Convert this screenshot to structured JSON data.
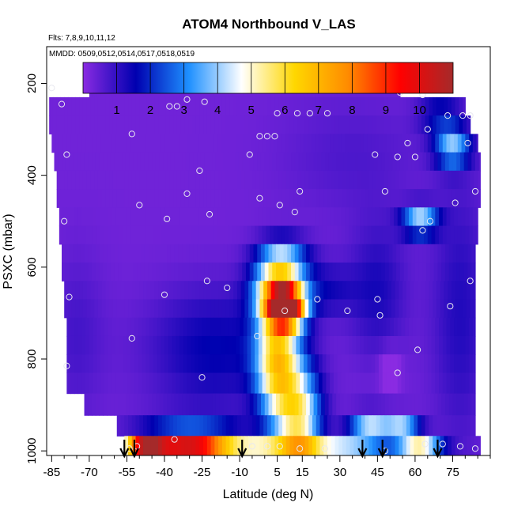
{
  "chart_data": {
    "type": "heatmap",
    "title": "ATOM4 Northbound V_LAS",
    "note_flights": "Flts: 7,8,9,10,11,12",
    "note_dates": "MMDD: 0509,0512,0514,0517,0518,0519",
    "xlabel": "Latitude (deg N)",
    "ylabel": "PSXC (mbar)",
    "xlim": [
      -87,
      90
    ],
    "ylim": [
      1010,
      120
    ],
    "y_reversed": true,
    "x_ticks": [
      -85,
      -70,
      -55,
      -40,
      -25,
      -10,
      5,
      15,
      30,
      45,
      60,
      75
    ],
    "x_minor_step": 5,
    "y_ticks": [
      200,
      400,
      600,
      800,
      1000
    ],
    "colorbar": {
      "range": [
        0,
        11
      ],
      "tick_values": [
        1,
        2,
        3,
        4,
        5,
        6,
        7,
        8,
        9,
        10
      ],
      "tick_labels": [
        "1",
        "2",
        "3",
        "4",
        "5",
        "6",
        "7",
        "8",
        "9",
        "10"
      ],
      "colors": [
        "#8a2be2",
        "#0000b0",
        "#1e90ff",
        "#ffffff",
        "#ffd700",
        "#ff8c00",
        "#ff0000",
        "#a52a2a"
      ]
    },
    "pressure_levels": [
      210,
      250,
      290,
      330,
      370,
      410,
      450,
      490,
      530,
      570,
      610,
      650,
      690,
      730,
      770,
      810,
      850,
      900,
      945,
      990
    ],
    "row_extent": [
      [
        -70,
        54
      ],
      [
        -86,
        80
      ],
      [
        -86,
        82
      ],
      [
        -85,
        85
      ],
      [
        -84,
        86
      ],
      [
        -83,
        86
      ],
      [
        -83,
        86
      ],
      [
        -82,
        85
      ],
      [
        -82,
        85
      ],
      [
        -81,
        84
      ],
      [
        -81,
        84
      ],
      [
        -80,
        84
      ],
      [
        -80,
        84
      ],
      [
        -79,
        84
      ],
      [
        -79,
        84
      ],
      [
        -79,
        84
      ],
      [
        -79,
        84
      ],
      [
        -72,
        84
      ],
      [
        -59,
        84
      ],
      [
        -56,
        86
      ]
    ],
    "field_background_value": 0.3,
    "field_features": [
      {
        "lat": 8.5,
        "p": 690,
        "amp": 9.6,
        "sx": 5,
        "sy": 28
      },
      {
        "lat": 6.0,
        "p": 650,
        "amp": 5.6,
        "sx": 7,
        "sy": 40
      },
      {
        "lat": 5.0,
        "p": 800,
        "amp": 5.8,
        "sx": 6,
        "sy": 95
      },
      {
        "lat": 14.0,
        "p": 930,
        "amp": 4.8,
        "sx": 6,
        "sy": 80
      },
      {
        "lat": 7.0,
        "p": 580,
        "amp": 3.0,
        "sx": 7,
        "sy": 30
      },
      {
        "lat": -40.0,
        "p": 990,
        "amp": 7.2,
        "sx": 12,
        "sy": 14
      },
      {
        "lat": -25.0,
        "p": 990,
        "amp": 4.5,
        "sx": 9,
        "sy": 14
      },
      {
        "lat": -48.0,
        "p": 990,
        "amp": 4.8,
        "sx": 5,
        "sy": 14
      },
      {
        "lat": -5.0,
        "p": 990,
        "amp": 3.8,
        "sx": 14,
        "sy": 14
      },
      {
        "lat": 30.0,
        "p": 990,
        "amp": 3.8,
        "sx": 14,
        "sy": 14
      },
      {
        "lat": 62.0,
        "p": 990,
        "amp": 4.5,
        "sx": 6,
        "sy": 14
      },
      {
        "lat": 55.0,
        "p": 950,
        "amp": 3.5,
        "sx": 5,
        "sy": 18
      },
      {
        "lat": 42.0,
        "p": 945,
        "amp": 3.8,
        "sx": 6,
        "sy": 20
      },
      {
        "lat": -30.0,
        "p": 940,
        "amp": 2.0,
        "sx": 14,
        "sy": 18
      },
      {
        "lat": -20.0,
        "p": 780,
        "amp": 1.3,
        "sx": 18,
        "sy": 90
      },
      {
        "lat": 62.0,
        "p": 500,
        "amp": 4.0,
        "sx": 5,
        "sy": 22
      },
      {
        "lat": 75.0,
        "p": 340,
        "amp": 3.5,
        "sx": 5,
        "sy": 30
      },
      {
        "lat": 70.0,
        "p": 270,
        "amp": 1.4,
        "sx": 6,
        "sy": 30
      },
      {
        "lat": 50.0,
        "p": 820,
        "amp": -0.9,
        "sx": 3,
        "sy": 30
      },
      {
        "lat": 45.0,
        "p": 650,
        "amp": 1.0,
        "sx": 8,
        "sy": 100
      },
      {
        "lat": 35.0,
        "p": 360,
        "amp": 0.4,
        "sx": 20,
        "sy": 90
      },
      {
        "lat": 78.0,
        "p": 700,
        "amp": 0.9,
        "sx": 8,
        "sy": 200
      },
      {
        "lat": -75.0,
        "p": 750,
        "amp": 0.5,
        "sx": 8,
        "sy": 120
      },
      {
        "lat": 25.0,
        "p": 650,
        "amp": 1.0,
        "sx": 8,
        "sy": 40
      }
    ],
    "sample_points": [
      [
        -85,
        210
      ],
      [
        -81,
        245
      ],
      [
        -71,
        205
      ],
      [
        -79,
        355
      ],
      [
        -80,
        500
      ],
      [
        -78,
        665
      ],
      [
        -79,
        815
      ],
      [
        -53,
        310
      ],
      [
        -50,
        465
      ],
      [
        -38,
        250
      ],
      [
        -35,
        250
      ],
      [
        -31,
        235
      ],
      [
        -24,
        240
      ],
      [
        -16,
        205
      ],
      [
        -26,
        390
      ],
      [
        -39,
        495
      ],
      [
        -31,
        440
      ],
      [
        -22,
        485
      ],
      [
        -40,
        660
      ],
      [
        -23,
        630
      ],
      [
        -15,
        645
      ],
      [
        -25,
        840
      ],
      [
        -53,
        755
      ],
      [
        -2,
        315
      ],
      [
        1,
        315
      ],
      [
        5,
        265
      ],
      [
        13,
        265
      ],
      [
        18,
        265
      ],
      [
        25,
        265
      ],
      [
        -2,
        450
      ],
      [
        6,
        465
      ],
      [
        14,
        435
      ],
      [
        12,
        480
      ],
      [
        4,
        315
      ],
      [
        -6,
        355
      ],
      [
        -3,
        750
      ],
      [
        8,
        695
      ],
      [
        21,
        670
      ],
      [
        33,
        695
      ],
      [
        45,
        670
      ],
      [
        46,
        705
      ],
      [
        44,
        355
      ],
      [
        53,
        360
      ],
      [
        60,
        360
      ],
      [
        57,
        330
      ],
      [
        48,
        435
      ],
      [
        54,
        220
      ],
      [
        63,
        225
      ],
      [
        70,
        215
      ],
      [
        65,
        300
      ],
      [
        73,
        270
      ],
      [
        79,
        270
      ],
      [
        82,
        270
      ],
      [
        81,
        330
      ],
      [
        84,
        435
      ],
      [
        76,
        460
      ],
      [
        66,
        500
      ],
      [
        63,
        520
      ],
      [
        82,
        630
      ],
      [
        74,
        685
      ],
      [
        61,
        780
      ],
      [
        53,
        830
      ],
      [
        -54,
        995
      ],
      [
        -51,
        990
      ],
      [
        -36,
        975
      ],
      [
        -5,
        990
      ],
      [
        1,
        990
      ],
      [
        6,
        990
      ],
      [
        14,
        995
      ],
      [
        24,
        995
      ],
      [
        48,
        1000
      ],
      [
        64,
        985
      ],
      [
        71,
        985
      ],
      [
        78,
        990
      ],
      [
        84,
        995
      ]
    ],
    "arrows_lat": [
      -56,
      -52,
      -9,
      39,
      47,
      69
    ]
  }
}
